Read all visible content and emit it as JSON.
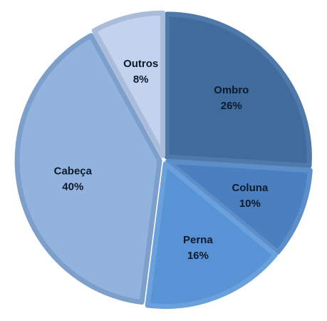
{
  "chart_data": {
    "type": "pie",
    "title": "",
    "start_angle_deg": 0,
    "direction": "clockwise",
    "slices": [
      {
        "label": "Ombro",
        "value": 26,
        "display": "26%",
        "color": "#3f6b9d",
        "edge": "#4f79a8"
      },
      {
        "label": "Coluna",
        "value": 10,
        "display": "10%",
        "color": "#4a7fc0",
        "edge": "#5d8ec9"
      },
      {
        "label": "Perna",
        "value": 16,
        "display": "16%",
        "color": "#5893d6",
        "edge": "#6aa0dc"
      },
      {
        "label": "Cabeça",
        "value": 40,
        "display": "40%",
        "color": "#93b3df",
        "edge": "#7d9fcc"
      },
      {
        "label": "Outros",
        "value": 8,
        "display": "8%",
        "color": "#c3d3ee",
        "edge": "#a9bcd9"
      }
    ],
    "legend": "none",
    "data_labels": "inside"
  }
}
